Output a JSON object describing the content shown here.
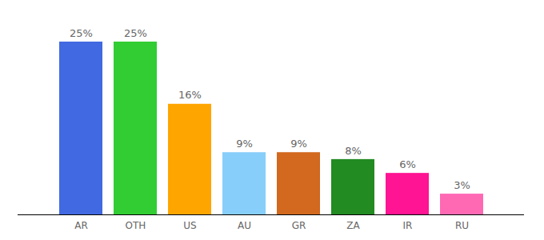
{
  "chart_data": {
    "type": "bar",
    "categories": [
      "AR",
      "OTH",
      "US",
      "AU",
      "GR",
      "ZA",
      "IR",
      "RU"
    ],
    "values": [
      25,
      25,
      16,
      9,
      9,
      8,
      6,
      3
    ],
    "value_labels": [
      "25%",
      "25%",
      "16%",
      "9%",
      "9%",
      "8%",
      "6%",
      "3%"
    ],
    "colors": [
      "#4169e1",
      "#32cd32",
      "#ffa500",
      "#87cefa",
      "#d2691e",
      "#228b22",
      "#ff1493",
      "#ff69b4"
    ],
    "ylim": [
      0,
      25
    ],
    "data_labels": true,
    "tick_labels": "x",
    "grid": false
  }
}
